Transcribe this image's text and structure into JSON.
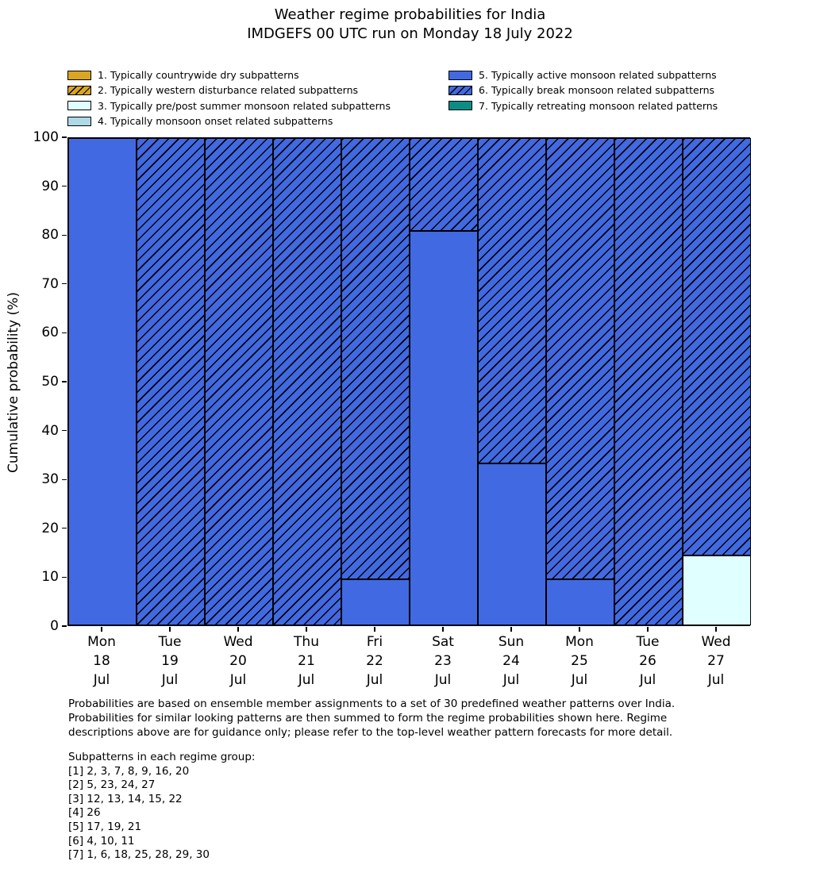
{
  "title": {
    "line1": "Weather regime probabilities for India",
    "line2": "IMDGEFS 00 UTC run on Monday 18 July 2022"
  },
  "colors": {
    "regime_gold": "#DAA520",
    "regime_lightcyan": "#E0FFFF",
    "regime_lightblue": "#ADD8E6",
    "regime_royalblue": "#4169E1",
    "regime_teal": "#0B8D85",
    "bar_edge": "#000000"
  },
  "legend": {
    "items": [
      {
        "label": "1. Typically countrywide dry subpatterns",
        "color": "#DAA520",
        "hatch": false
      },
      {
        "label": "2. Typically western disturbance related subpatterns",
        "color": "#DAA520",
        "hatch": true
      },
      {
        "label": "3. Typically pre/post summer monsoon related subpatterns",
        "color": "#E0FFFF",
        "hatch": false
      },
      {
        "label": "4. Typically monsoon onset related subpatterns",
        "color": "#ADD8E6",
        "hatch": false
      },
      {
        "label": "5. Typically active monsoon related subpatterns",
        "color": "#4169E1",
        "hatch": false
      },
      {
        "label": "6. Typically break monsoon related subpatterns",
        "color": "#4169E1",
        "hatch": true
      },
      {
        "label": "7. Typically retreating monsoon related patterns",
        "color": "#0B8D85",
        "hatch": false
      }
    ]
  },
  "chart_data": {
    "type": "bar",
    "stacked": true,
    "title": "Weather regime probabilities for India",
    "subtitle": "IMDGEFS 00 UTC run on Monday 18 July 2022",
    "categories": [
      {
        "label": "Mon 18 Jul",
        "lines": [
          "Mon",
          "18",
          "Jul"
        ]
      },
      {
        "label": "Tue 19 Jul",
        "lines": [
          "Tue",
          "19",
          "Jul"
        ]
      },
      {
        "label": "Wed 20 Jul",
        "lines": [
          "Wed",
          "20",
          "Jul"
        ]
      },
      {
        "label": "Thu 21 Jul",
        "lines": [
          "Thu",
          "21",
          "Jul"
        ]
      },
      {
        "label": "Fri 22 Jul",
        "lines": [
          "Fri",
          "22",
          "Jul"
        ]
      },
      {
        "label": "Sat 23 Jul",
        "lines": [
          "Sat",
          "23",
          "Jul"
        ]
      },
      {
        "label": "Sun 24 Jul",
        "lines": [
          "Sun",
          "24",
          "Jul"
        ]
      },
      {
        "label": "Mon 25 Jul",
        "lines": [
          "Mon",
          "25",
          "Jul"
        ]
      },
      {
        "label": "Tue 26 Jul",
        "lines": [
          "Tue",
          "26",
          "Jul"
        ]
      },
      {
        "label": "Wed 27 Jul",
        "lines": [
          "Wed",
          "27",
          "Jul"
        ]
      }
    ],
    "series": [
      {
        "name": "3. Typically pre/post summer monsoon related subpatterns",
        "color": "#E0FFFF",
        "hatch": false,
        "values": [
          0,
          0,
          0,
          0,
          0,
          0,
          0,
          0,
          0,
          14.3
        ]
      },
      {
        "name": "5. Typically active monsoon related subpatterns",
        "color": "#4169E1",
        "hatch": false,
        "values": [
          100,
          0,
          0,
          0,
          9.5,
          81,
          33.3,
          9.5,
          0,
          0
        ]
      },
      {
        "name": "6. Typically break monsoon related subpatterns",
        "color": "#4169E1",
        "hatch": true,
        "values": [
          0,
          100,
          100,
          100,
          90.5,
          19,
          66.7,
          90.5,
          100,
          85.7
        ]
      }
    ],
    "ylabel": "Cumulative probability (%)",
    "xlabel": "",
    "ylim": [
      0,
      100
    ],
    "yticks": [
      0,
      10,
      20,
      30,
      40,
      50,
      60,
      70,
      80,
      90,
      100
    ],
    "grid": false,
    "legend_position": "top"
  },
  "footer": {
    "paragraph_lines": [
      "Probabilities are based on ensemble member assignments to a set of 30 predefined weather patterns over India.",
      "Probabilities for similar looking patterns are then summed to form the regime probabilities shown here. Regime",
      "descriptions above are for guidance only; please refer to the top-level weather pattern forecasts for more detail."
    ],
    "subpatterns_title": "Subpatterns in each regime group:",
    "subpattern_lines": [
      "[1] 2, 3, 7, 8, 9, 16, 20",
      "[2] 5, 23, 24, 27",
      "[3] 12, 13, 14, 15, 22",
      "[4] 26",
      "[5] 17, 19, 21",
      "[6] 4, 10, 11",
      "[7] 1, 6, 18, 25, 28, 29, 30"
    ]
  }
}
